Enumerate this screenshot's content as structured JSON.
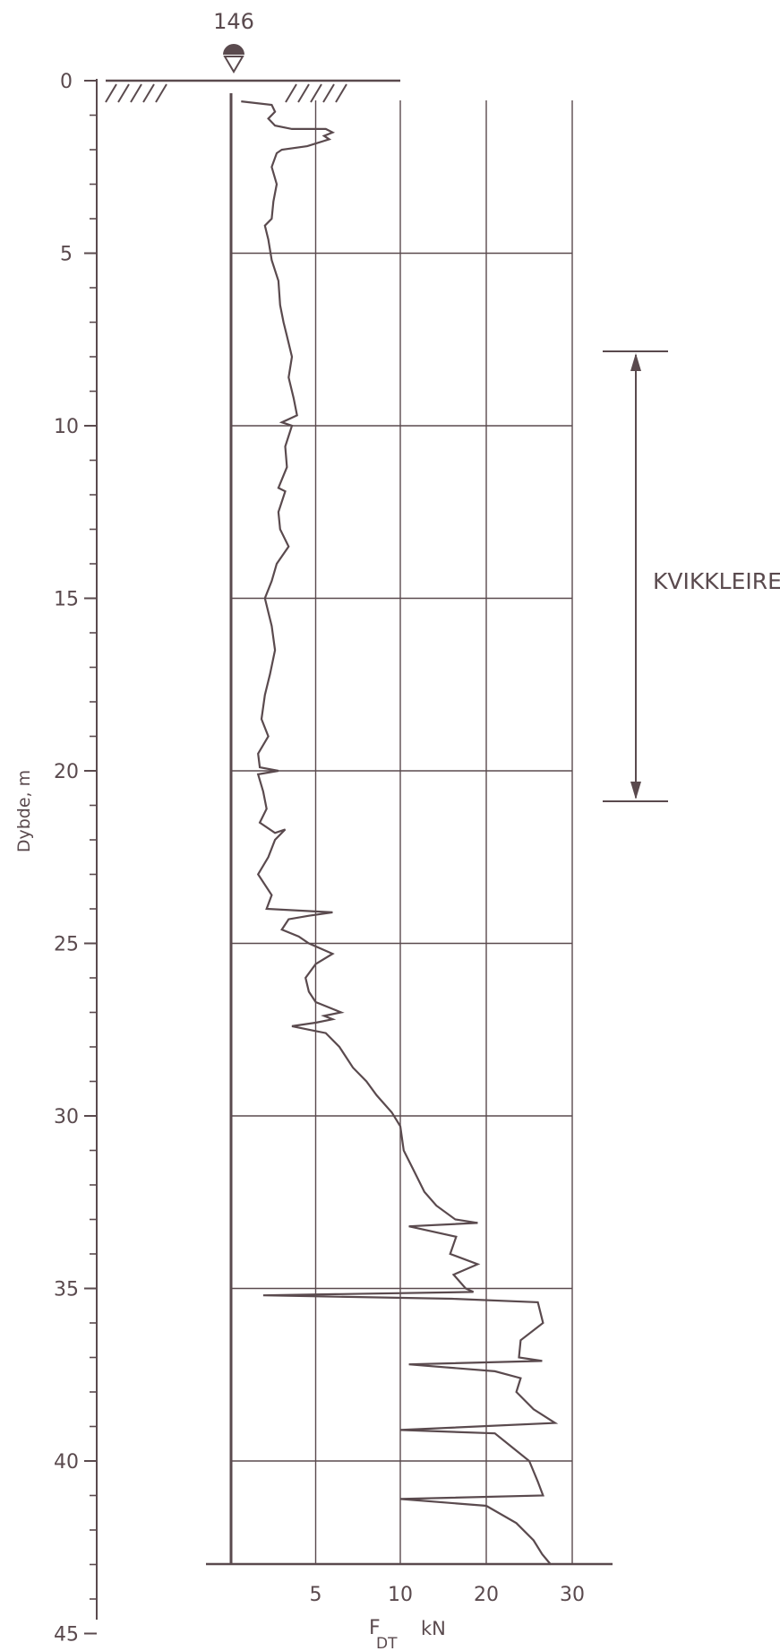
{
  "chart_data": {
    "type": "line",
    "borehole_id": "146",
    "ylabel": "Dybde, m",
    "xlabel": "F",
    "xlabel_subscript": "DT",
    "xlabel_unit": "kN",
    "y_ticks": [
      "0",
      "5",
      "10",
      "15",
      "20",
      "25",
      "30",
      "35",
      "40",
      "45"
    ],
    "x_ticks": [
      "5",
      "10",
      "20",
      "30"
    ],
    "ylim": [
      0,
      45
    ],
    "depth_end": 43,
    "grid": true,
    "annotation": {
      "label": "KVIKKLEIRE",
      "from_depth": 8,
      "to_depth": 21
    },
    "series": [
      {
        "points": [
          [
            0.6,
            0.6
          ],
          [
            2.4,
            0.7
          ],
          [
            2.6,
            0.9
          ],
          [
            2.2,
            1.1
          ],
          [
            2.6,
            1.3
          ],
          [
            3.6,
            1.4
          ],
          [
            5.6,
            1.4
          ],
          [
            6.0,
            1.5
          ],
          [
            5.5,
            1.6
          ],
          [
            5.8,
            1.7
          ],
          [
            4.5,
            1.9
          ],
          [
            3.0,
            2.0
          ],
          [
            2.7,
            2.1
          ],
          [
            2.4,
            2.5
          ],
          [
            2.7,
            3.0
          ],
          [
            2.5,
            3.5
          ],
          [
            2.4,
            4.0
          ],
          [
            2.0,
            4.2
          ],
          [
            2.2,
            4.6
          ],
          [
            2.4,
            5.2
          ],
          [
            2.8,
            5.8
          ],
          [
            2.9,
            6.5
          ],
          [
            3.1,
            7.0
          ],
          [
            3.3,
            7.4
          ],
          [
            3.6,
            8.0
          ],
          [
            3.4,
            8.6
          ],
          [
            3.7,
            9.2
          ],
          [
            3.9,
            9.7
          ],
          [
            3.0,
            9.9
          ],
          [
            3.6,
            10.0
          ],
          [
            3.2,
            10.6
          ],
          [
            3.3,
            11.2
          ],
          [
            2.8,
            11.8
          ],
          [
            3.2,
            11.9
          ],
          [
            2.8,
            12.5
          ],
          [
            2.9,
            13.0
          ],
          [
            3.4,
            13.5
          ],
          [
            2.7,
            14.0
          ],
          [
            2.4,
            14.5
          ],
          [
            2.0,
            15.0
          ],
          [
            2.4,
            15.8
          ],
          [
            2.6,
            16.5
          ],
          [
            2.3,
            17.2
          ],
          [
            2.0,
            17.8
          ],
          [
            1.8,
            18.5
          ],
          [
            2.2,
            19.0
          ],
          [
            1.6,
            19.5
          ],
          [
            1.7,
            19.9
          ],
          [
            2.8,
            20.0
          ],
          [
            1.6,
            20.1
          ],
          [
            1.9,
            20.6
          ],
          [
            2.1,
            21.1
          ],
          [
            1.7,
            21.5
          ],
          [
            2.6,
            21.8
          ],
          [
            3.2,
            21.7
          ],
          [
            2.6,
            22.0
          ],
          [
            2.2,
            22.5
          ],
          [
            1.6,
            23.0
          ],
          [
            2.4,
            23.6
          ],
          [
            2.1,
            24.0
          ],
          [
            6.0,
            24.1
          ],
          [
            4.6,
            24.2
          ],
          [
            3.4,
            24.3
          ],
          [
            3.0,
            24.6
          ],
          [
            4.0,
            24.8
          ],
          [
            4.6,
            25.0
          ],
          [
            6.0,
            25.3
          ],
          [
            5.0,
            25.6
          ],
          [
            4.4,
            26.0
          ],
          [
            4.6,
            26.4
          ],
          [
            5.0,
            26.7
          ],
          [
            6.5,
            27.0
          ],
          [
            5.5,
            27.1
          ],
          [
            6.0,
            27.2
          ],
          [
            5.0,
            27.3
          ],
          [
            3.6,
            27.4
          ],
          [
            4.6,
            27.5
          ],
          [
            5.6,
            27.6
          ],
          [
            6.4,
            28.0
          ],
          [
            7.2,
            28.6
          ],
          [
            8.0,
            29.0
          ],
          [
            8.6,
            29.4
          ],
          [
            9.5,
            29.9
          ],
          [
            10.0,
            30.3
          ],
          [
            10.4,
            31.0
          ],
          [
            11.6,
            31.6
          ],
          [
            12.8,
            32.2
          ],
          [
            14.2,
            32.6
          ],
          [
            16.4,
            33.0
          ],
          [
            19.0,
            33.1
          ],
          [
            11.0,
            33.2
          ],
          [
            16.5,
            33.5
          ],
          [
            15.8,
            34.0
          ],
          [
            19.0,
            34.3
          ],
          [
            16.2,
            34.6
          ],
          [
            17.6,
            35.0
          ],
          [
            18.5,
            35.1
          ],
          [
            1.9,
            35.2
          ],
          [
            16.0,
            35.3
          ],
          [
            26.0,
            35.4
          ],
          [
            26.6,
            36.0
          ],
          [
            24.0,
            36.5
          ],
          [
            23.8,
            37.0
          ],
          [
            26.5,
            37.1
          ],
          [
            11.0,
            37.2
          ],
          [
            21.0,
            37.4
          ],
          [
            24.0,
            37.6
          ],
          [
            23.5,
            38.0
          ],
          [
            25.5,
            38.5
          ],
          [
            28.0,
            38.9
          ],
          [
            10.0,
            39.1
          ],
          [
            21.0,
            39.2
          ],
          [
            23.0,
            39.6
          ],
          [
            25.0,
            40.0
          ],
          [
            26.0,
            40.6
          ],
          [
            26.6,
            41.0
          ],
          [
            10.0,
            41.1
          ],
          [
            20.0,
            41.3
          ],
          [
            23.5,
            41.8
          ],
          [
            25.5,
            42.3
          ],
          [
            26.5,
            42.7
          ],
          [
            27.5,
            43.0
          ]
        ]
      }
    ]
  }
}
